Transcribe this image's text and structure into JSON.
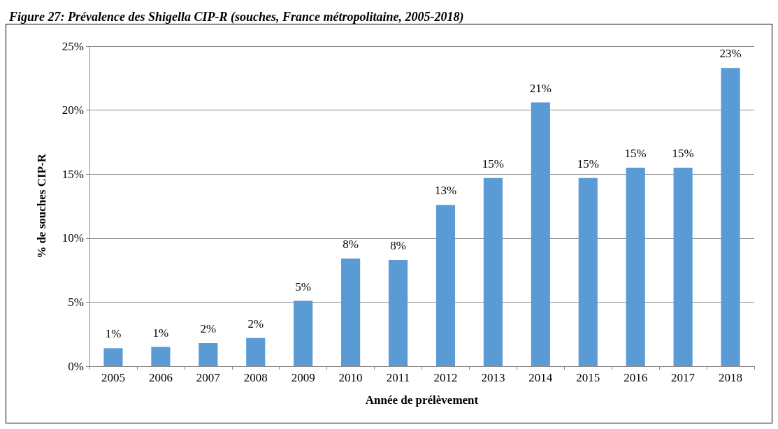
{
  "chart_data": {
    "type": "bar",
    "title": "Figure 27: Prévalence des Shigella CIP-R (souches, France métropolitaine, 2005-2018)",
    "xlabel": "Année de prélèvement",
    "ylabel": "% de souches CIP-R",
    "categories": [
      "2005",
      "2006",
      "2007",
      "2008",
      "2009",
      "2010",
      "2011",
      "2012",
      "2013",
      "2014",
      "2015",
      "2016",
      "2017",
      "2018"
    ],
    "values": [
      1.4,
      1.5,
      1.8,
      2.2,
      5.1,
      8.4,
      8.3,
      12.6,
      14.7,
      20.6,
      14.7,
      15.5,
      15.5,
      23.3
    ],
    "value_labels": [
      "1%",
      "1%",
      "2%",
      "2%",
      "5%",
      "8%",
      "8%",
      "13%",
      "15%",
      "21%",
      "15%",
      "15%",
      "15%",
      "23%"
    ],
    "color": "#5b9bd5",
    "ylim": [
      0,
      25
    ],
    "yticks": [
      {
        "value": 0,
        "label": "0%"
      },
      {
        "value": 5,
        "label": "5%"
      },
      {
        "value": 10,
        "label": "10%"
      },
      {
        "value": 15,
        "label": "15%"
      },
      {
        "value": 20,
        "label": "20%"
      },
      {
        "value": 25,
        "label": "25%"
      }
    ],
    "grid": "y"
  }
}
